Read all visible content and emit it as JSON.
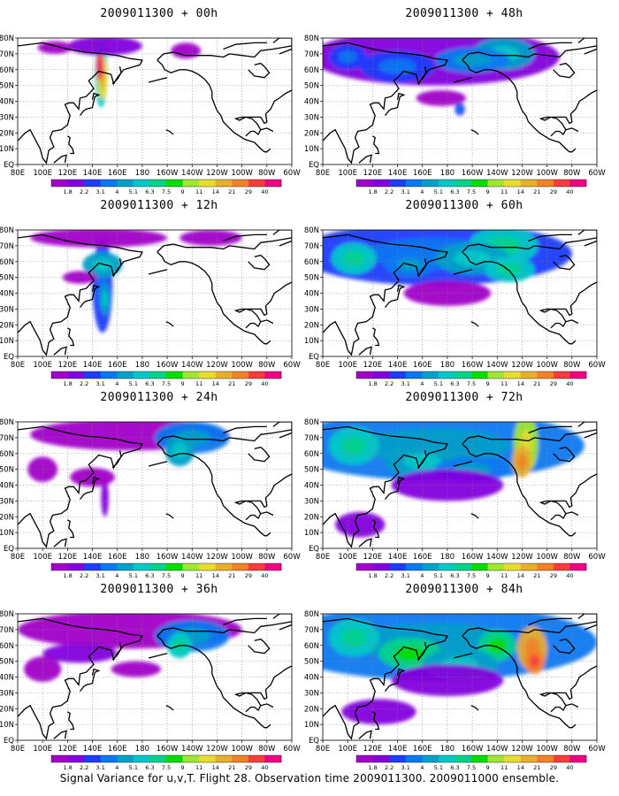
{
  "caption": "Signal Variance for u,v,T. Flight 28. Observation time 2009011300. 2009011000 ensemble.",
  "colorbar": {
    "labels": [
      "1.8",
      "2.2",
      "3.1",
      "4",
      "5.1",
      "6.3",
      "7.5",
      "9",
      "11",
      "14",
      "21",
      "29",
      "40"
    ],
    "colors": [
      "#a000c8",
      "#8200dc",
      "#1e3cff",
      "#0a78f0",
      "#00a0c8",
      "#00c8c8",
      "#00d28c",
      "#00dc00",
      "#a0e632",
      "#e6dc32",
      "#e6af2d",
      "#f08228",
      "#fa3c3c",
      "#f00082"
    ]
  },
  "axes": {
    "x_ticks": [
      "80E",
      "100E",
      "120E",
      "140E",
      "160E",
      "180",
      "160W",
      "140W",
      "120W",
      "100W",
      "80W",
      "60W"
    ],
    "y_ticks": [
      "EQ",
      "10N",
      "20N",
      "30N",
      "40N",
      "50N",
      "60N",
      "70N",
      "80N"
    ]
  },
  "chart_data": [
    {
      "type": "heatmap",
      "title": "2009011300 + 00h",
      "panel_id": "p00",
      "level": 0,
      "blobs": [
        [
          147,
          58,
          5,
          22,
          5
        ],
        [
          148,
          55,
          4,
          14,
          9
        ],
        [
          146,
          62,
          3,
          9,
          12
        ],
        [
          150,
          75,
          30,
          6,
          1
        ],
        [
          110,
          74,
          14,
          4,
          0
        ],
        [
          215,
          72,
          12,
          5,
          0
        ]
      ]
    },
    {
      "type": "heatmap",
      "title": "2009011300 + 12h",
      "panel_id": "p12",
      "level": 1,
      "blobs": [
        [
          148,
          45,
          8,
          30,
          2
        ],
        [
          148,
          58,
          16,
          8,
          4
        ],
        [
          145,
          75,
          55,
          6,
          0
        ],
        [
          235,
          75,
          25,
          5,
          0
        ],
        [
          130,
          50,
          14,
          4,
          0
        ],
        [
          150,
          36,
          4,
          10,
          4
        ]
      ]
    },
    {
      "type": "heatmap",
      "title": "2009011300 + 24h",
      "panel_id": "p24",
      "level": 2,
      "blobs": [
        [
          170,
          72,
          80,
          10,
          0
        ],
        [
          220,
          70,
          30,
          10,
          3
        ],
        [
          210,
          62,
          12,
          10,
          4
        ],
        [
          150,
          32,
          3,
          12,
          1
        ],
        [
          100,
          50,
          12,
          8,
          0
        ],
        [
          140,
          45,
          18,
          6,
          0
        ]
      ]
    },
    {
      "type": "heatmap",
      "title": "2009011300 + 36h",
      "panel_id": "p36",
      "level": 3,
      "blobs": [
        [
          170,
          70,
          90,
          12,
          0
        ],
        [
          220,
          66,
          30,
          10,
          3
        ],
        [
          210,
          60,
          10,
          8,
          5
        ],
        [
          130,
          55,
          30,
          6,
          1
        ],
        [
          100,
          45,
          15,
          8,
          0
        ],
        [
          175,
          45,
          20,
          5,
          0
        ]
      ]
    },
    {
      "type": "heatmap",
      "title": "2009011300 + 48h",
      "panel_id": "p48",
      "level": 4,
      "blobs": [
        [
          170,
          68,
          100,
          18,
          1
        ],
        [
          225,
          70,
          25,
          10,
          4
        ],
        [
          200,
          66,
          30,
          8,
          3
        ],
        [
          140,
          62,
          30,
          10,
          2
        ],
        [
          100,
          68,
          15,
          8,
          2
        ],
        [
          175,
          42,
          20,
          5,
          0
        ],
        [
          190,
          35,
          4,
          4,
          2
        ]
      ]
    },
    {
      "type": "heatmap",
      "title": "2009011300 + 60h",
      "panel_id": "p60",
      "level": 5,
      "blobs": [
        [
          170,
          65,
          110,
          20,
          2
        ],
        [
          225,
          70,
          28,
          12,
          5
        ],
        [
          200,
          62,
          30,
          10,
          4
        ],
        [
          105,
          62,
          18,
          10,
          5
        ],
        [
          150,
          58,
          20,
          8,
          3
        ],
        [
          230,
          55,
          20,
          8,
          5
        ],
        [
          180,
          40,
          35,
          8,
          0
        ]
      ]
    },
    {
      "type": "heatmap",
      "title": "2009011300 + 72h",
      "panel_id": "p72",
      "level": 6,
      "blobs": [
        [
          170,
          65,
          120,
          22,
          3
        ],
        [
          243,
          66,
          10,
          18,
          8
        ],
        [
          240,
          55,
          8,
          10,
          10
        ],
        [
          105,
          65,
          20,
          12,
          5
        ],
        [
          160,
          55,
          30,
          10,
          4
        ],
        [
          200,
          50,
          30,
          8,
          3
        ],
        [
          180,
          40,
          45,
          10,
          1
        ],
        [
          110,
          15,
          20,
          8,
          1
        ]
      ]
    },
    {
      "type": "heatmap",
      "title": "2009011300 + 84h",
      "panel_id": "p84",
      "level": 7,
      "blobs": [
        [
          170,
          62,
          130,
          24,
          3
        ],
        [
          248,
          58,
          12,
          14,
          10
        ],
        [
          250,
          50,
          8,
          8,
          11
        ],
        [
          220,
          60,
          15,
          10,
          6
        ],
        [
          105,
          65,
          20,
          12,
          5
        ],
        [
          150,
          55,
          25,
          10,
          6
        ],
        [
          190,
          48,
          30,
          10,
          4
        ],
        [
          180,
          38,
          45,
          10,
          1
        ],
        [
          125,
          18,
          30,
          8,
          1
        ]
      ]
    }
  ]
}
